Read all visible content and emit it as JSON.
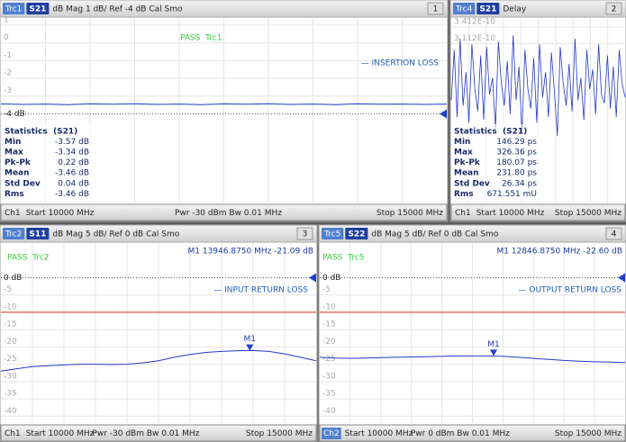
{
  "xlim": [
    10000,
    15000
  ],
  "panels": [
    {
      "header": {
        "trace": "Trc1",
        "param": "S21",
        "format": "dB Mag 1 dB/ Ref -4 dB Cal Smo",
        "number": "1"
      },
      "pass": "PASS  Trc1",
      "annotation": "— INSERTION LOSS",
      "ref_level": -4,
      "trace": {
        "ylim": [
          -9,
          1.4
        ],
        "yticks": [
          1,
          0,
          -1,
          -2,
          -3,
          {
            "value": -4,
            "label": "-4 dB"
          }
        ],
        "values": [
          -3.44,
          -3.47,
          -3.45,
          -3.48,
          -3.44,
          -3.46,
          -3.43,
          -3.47,
          -3.45,
          -3.48,
          -3.44,
          -3.46,
          -3.43,
          -3.47,
          -3.45,
          -3.48,
          -3.44,
          -3.46,
          -3.45,
          -3.47,
          -3.45
        ]
      },
      "stats": {
        "title": "Statistics",
        "param": "(S21)",
        "rows": [
          {
            "label": "Min",
            "value": "-3.57 dB"
          },
          {
            "label": "Max",
            "value": "-3.34 dB"
          },
          {
            "label": "Pk-Pk",
            "value": "0.22 dB"
          },
          {
            "label": "Mean",
            "value": "-3.46 dB"
          },
          {
            "label": "Std Dev",
            "value": "0.04 dB"
          },
          {
            "label": "Rms",
            "value": "-3.46 dB"
          }
        ]
      },
      "footer": {
        "channel": "Ch1",
        "start": "Start 10000 MHz",
        "mid": "Pwr -30 dBm Bw 0.01 MHz",
        "stop": "Stop 15000 MHz"
      }
    },
    {
      "header": {
        "trace": "Trc4",
        "param": "S21",
        "format": "Delay",
        "number": "2"
      },
      "trace": {
        "ylim": [
          27,
          357
        ],
        "yticks": [
          {
            "value": 341.2,
            "label": "3.412E-10"
          },
          {
            "value": 311.2,
            "label": "3.112E-10"
          }
        ],
        "values": [
          210,
          300,
          180,
          320,
          200,
          260,
          170,
          310,
          230,
          190,
          290,
          175,
          305,
          220,
          250,
          160,
          315,
          240,
          200,
          280,
          185,
          326,
          210,
          270,
          150,
          300,
          230,
          195,
          285,
          170,
          310,
          215,
          260,
          180,
          295,
          225,
          146,
          305,
          240,
          200,
          275,
          190,
          320,
          210,
          250,
          175,
          300,
          230,
          265,
          185,
          310,
          220,
          205,
          290,
          195,
          270,
          180,
          300,
          240,
          215
        ]
      },
      "stats": {
        "title": "Statistics",
        "param": "(S21)",
        "rows": [
          {
            "label": "Min",
            "value": "146.29 ps"
          },
          {
            "label": "Max",
            "value": "326.36 ps"
          },
          {
            "label": "Pk-Pk",
            "value": "180.07 ps"
          },
          {
            "label": "Mean",
            "value": "231.80 ps"
          },
          {
            "label": "Std Dev",
            "value": "26.34 ps"
          },
          {
            "label": "Rms",
            "value": "671.551 mU"
          }
        ]
      },
      "footer": {
        "channel": "Ch1",
        "start": "Start 10000 MHz",
        "stop": "Stop 15000 MHz"
      }
    },
    {
      "header": {
        "trace": "Trc2",
        "param": "S11",
        "format": "dB Mag 5 dB/ Ref 0 dB Cal Smo",
        "number": "3"
      },
      "pass": "PASS  Trc2",
      "annotation": "— INPUT RETURN LOSS",
      "ref_level": 0,
      "limit_line": -10,
      "trace": {
        "ylim": [
          -42,
          10
        ],
        "yticks": [
          {
            "value": 0,
            "label": "0 dB"
          },
          -5,
          -10,
          -15,
          -20,
          -25,
          -30,
          -35,
          -40
        ],
        "values": [
          -27,
          -26.3,
          -25.7,
          -25.4,
          -25.2,
          -25,
          -25,
          -25.1,
          -25,
          -24.6,
          -24,
          -23,
          -22.2,
          -21.6,
          -21.3,
          -21.1,
          -21.05,
          -21.3,
          -22,
          -23,
          -24
        ]
      },
      "marker": {
        "name": "M1",
        "label": "M1 13946.8750 MHz -21.09 dB",
        "x": 13946.875,
        "y": -21.09
      },
      "footer": {
        "channel": "Ch1",
        "start": "Start 10000 MHz",
        "mid": "Pwr -30 dBm Bw 0.01 MHz",
        "stop": "Stop 15000 MHz"
      }
    },
    {
      "header": {
        "trace": "Trc5",
        "param": "S22",
        "format": "dB Mag 5 dB/ Ref 0 dB Cal Smo",
        "number": "4"
      },
      "pass": "PASS  Trc5",
      "annotation": "— OUTPUT RETURN LOSS",
      "ref_level": 0,
      "limit_line": -10,
      "trace": {
        "ylim": [
          -42,
          10
        ],
        "yticks": [
          {
            "value": 0,
            "label": "0 dB"
          },
          -5,
          -10,
          -15,
          -20,
          -25,
          -30,
          -35,
          -40
        ],
        "values": [
          -23,
          -23.2,
          -23.3,
          -23.2,
          -23.1,
          -23,
          -22.9,
          -22.8,
          -22.7,
          -22.6,
          -22.6,
          -22.6,
          -22.7,
          -23,
          -23.3,
          -23.6,
          -23.9,
          -24.1,
          -24.3,
          -24.4,
          -24.5
        ]
      },
      "marker": {
        "name": "M1",
        "label": "M1 12846.8750 MHz -22.60 dB",
        "x": 12846.875,
        "y": -22.6
      },
      "footer": {
        "channel": "Ch2",
        "channel_highlight": true,
        "start": "Start 10000 MHz",
        "mid": "Pwr 0 dBm Bw 0.01 MHz",
        "stop": "Stop 15000 MHz"
      }
    }
  ]
}
